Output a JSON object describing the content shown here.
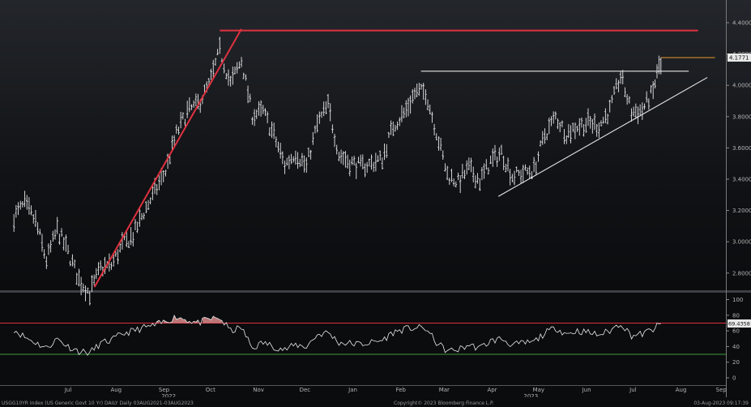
{
  "chart_data": [
    {
      "type": "ohlc-bar",
      "title": "",
      "ylabel": "",
      "ylim": [
        2.7,
        4.45
      ],
      "yticks": [
        "4.4000",
        "4.2000",
        "4.0000",
        "3.8000",
        "3.6000",
        "3.4000",
        "3.2000",
        "3.0000",
        "2.8000"
      ],
      "ytick_values": [
        4.4,
        4.2,
        4.0,
        3.8,
        3.6,
        3.4,
        3.2,
        3.0,
        2.8
      ],
      "last_value_label": "4.1771",
      "last_value": 4.1771,
      "x_months": [
        "Jul",
        "Aug",
        "Sep",
        "Oct",
        "Nov",
        "Dec",
        "Jan",
        "Feb",
        "Mar",
        "Apr",
        "May",
        "Jun",
        "Jul",
        "Aug",
        "Sep"
      ],
      "x_years": [
        "2022",
        "2023"
      ],
      "series_color": "#ffffff",
      "closes_weekly": [
        {
          "date": "2022-06-10",
          "y": 3.16
        },
        {
          "date": "2022-06-17",
          "y": 3.24
        },
        {
          "date": "2022-06-24",
          "y": 3.13
        },
        {
          "date": "2022-07-01",
          "y": 2.88
        },
        {
          "date": "2022-07-08",
          "y": 3.08
        },
        {
          "date": "2022-07-15",
          "y": 2.93
        },
        {
          "date": "2022-07-22",
          "y": 2.76
        },
        {
          "date": "2022-07-29",
          "y": 2.67
        },
        {
          "date": "2022-08-05",
          "y": 2.83
        },
        {
          "date": "2022-08-12",
          "y": 2.85
        },
        {
          "date": "2022-08-19",
          "y": 2.98
        },
        {
          "date": "2022-08-26",
          "y": 3.04
        },
        {
          "date": "2022-09-02",
          "y": 3.19
        },
        {
          "date": "2022-09-09",
          "y": 3.32
        },
        {
          "date": "2022-09-16",
          "y": 3.45
        },
        {
          "date": "2022-09-23",
          "y": 3.69
        },
        {
          "date": "2022-09-30",
          "y": 3.83
        },
        {
          "date": "2022-10-07",
          "y": 3.88
        },
        {
          "date": "2022-10-14",
          "y": 4.0
        },
        {
          "date": "2022-10-21",
          "y": 4.22
        },
        {
          "date": "2022-10-28",
          "y": 4.01
        },
        {
          "date": "2022-11-04",
          "y": 4.16
        },
        {
          "date": "2022-11-11",
          "y": 3.81
        },
        {
          "date": "2022-11-18",
          "y": 3.83
        },
        {
          "date": "2022-11-25",
          "y": 3.68
        },
        {
          "date": "2022-12-02",
          "y": 3.49
        },
        {
          "date": "2022-12-09",
          "y": 3.57
        },
        {
          "date": "2022-12-16",
          "y": 3.48
        },
        {
          "date": "2022-12-23",
          "y": 3.75
        },
        {
          "date": "2022-12-30",
          "y": 3.87
        },
        {
          "date": "2023-01-06",
          "y": 3.56
        },
        {
          "date": "2023-01-13",
          "y": 3.51
        },
        {
          "date": "2023-01-20",
          "y": 3.48
        },
        {
          "date": "2023-01-27",
          "y": 3.5
        },
        {
          "date": "2023-02-03",
          "y": 3.53
        },
        {
          "date": "2023-02-10",
          "y": 3.74
        },
        {
          "date": "2023-02-17",
          "y": 3.82
        },
        {
          "date": "2023-02-24",
          "y": 3.95
        },
        {
          "date": "2023-03-03",
          "y": 3.96
        },
        {
          "date": "2023-03-10",
          "y": 3.7
        },
        {
          "date": "2023-03-17",
          "y": 3.43
        },
        {
          "date": "2023-03-24",
          "y": 3.38
        },
        {
          "date": "2023-03-31",
          "y": 3.47
        },
        {
          "date": "2023-04-07",
          "y": 3.39
        },
        {
          "date": "2023-04-14",
          "y": 3.51
        },
        {
          "date": "2023-04-21",
          "y": 3.57
        },
        {
          "date": "2023-04-28",
          "y": 3.42
        },
        {
          "date": "2023-05-05",
          "y": 3.44
        },
        {
          "date": "2023-05-12",
          "y": 3.46
        },
        {
          "date": "2023-05-19",
          "y": 3.68
        },
        {
          "date": "2023-05-26",
          "y": 3.8
        },
        {
          "date": "2023-06-02",
          "y": 3.69
        },
        {
          "date": "2023-06-09",
          "y": 3.74
        },
        {
          "date": "2023-06-16",
          "y": 3.76
        },
        {
          "date": "2023-06-23",
          "y": 3.74
        },
        {
          "date": "2023-06-30",
          "y": 3.84
        },
        {
          "date": "2023-07-07",
          "y": 4.06
        },
        {
          "date": "2023-07-14",
          "y": 3.83
        },
        {
          "date": "2023-07-21",
          "y": 3.84
        },
        {
          "date": "2023-07-28",
          "y": 3.96
        },
        {
          "date": "2023-08-02",
          "y": 4.18
        }
      ],
      "annotations": [
        {
          "kind": "trendline",
          "color": "#e0313f",
          "from": {
            "date": "2022-08-01",
            "y": 2.71
          },
          "to": {
            "date": "2022-11-04",
            "y": 4.36
          }
        },
        {
          "kind": "resistance",
          "color": "#e0313f",
          "from": {
            "date": "2022-10-21",
            "y": 4.35
          },
          "to": {
            "date": "2023-08-26",
            "y": 4.35
          }
        },
        {
          "kind": "resistance",
          "color": "#e6e6e6",
          "from": {
            "date": "2023-02-28",
            "y": 4.09
          },
          "to": {
            "date": "2023-08-20",
            "y": 4.09
          }
        },
        {
          "kind": "support",
          "color": "#e6e6e6",
          "from": {
            "date": "2023-04-19",
            "y": 3.29
          },
          "to": {
            "date": "2023-09-01",
            "y": 4.05
          }
        },
        {
          "kind": "last-price",
          "color": "#d88a2e",
          "from": {
            "date": "2023-08-02",
            "y": 4.1771
          },
          "to": {
            "date": "2023-09-06",
            "y": 4.1771
          }
        }
      ]
    },
    {
      "type": "line",
      "title": "",
      "ylabel": "",
      "ylim": [
        -8,
        110
      ],
      "yticks": [
        "100",
        "80",
        "60",
        "40",
        "20",
        "0"
      ],
      "ytick_values": [
        100,
        80,
        60,
        40,
        20,
        0
      ],
      "last_value_label": "69.4358",
      "last_value": 69.4358,
      "overbought": 70,
      "oversold": 30,
      "overbought_color": "#e0313f",
      "oversold_color": "#3f9d3f",
      "fill_color": "#d98a8a",
      "points": [
        {
          "date": "2022-06-10",
          "y": 62
        },
        {
          "date": "2022-06-17",
          "y": 52
        },
        {
          "date": "2022-06-24",
          "y": 45
        },
        {
          "date": "2022-07-01",
          "y": 38
        },
        {
          "date": "2022-07-08",
          "y": 50
        },
        {
          "date": "2022-07-15",
          "y": 40
        },
        {
          "date": "2022-07-22",
          "y": 34
        },
        {
          "date": "2022-07-29",
          "y": 32
        },
        {
          "date": "2022-08-05",
          "y": 44
        },
        {
          "date": "2022-08-12",
          "y": 48
        },
        {
          "date": "2022-08-19",
          "y": 56
        },
        {
          "date": "2022-08-26",
          "y": 60
        },
        {
          "date": "2022-09-02",
          "y": 64
        },
        {
          "date": "2022-09-09",
          "y": 67
        },
        {
          "date": "2022-09-16",
          "y": 72
        },
        {
          "date": "2022-09-23",
          "y": 78
        },
        {
          "date": "2022-09-30",
          "y": 74
        },
        {
          "date": "2022-10-07",
          "y": 70
        },
        {
          "date": "2022-10-14",
          "y": 75
        },
        {
          "date": "2022-10-21",
          "y": 76
        },
        {
          "date": "2022-10-28",
          "y": 60
        },
        {
          "date": "2022-11-04",
          "y": 64
        },
        {
          "date": "2022-11-11",
          "y": 38
        },
        {
          "date": "2022-11-18",
          "y": 45
        },
        {
          "date": "2022-11-25",
          "y": 40
        },
        {
          "date": "2022-12-02",
          "y": 36
        },
        {
          "date": "2022-12-09",
          "y": 42
        },
        {
          "date": "2022-12-16",
          "y": 40
        },
        {
          "date": "2022-12-23",
          "y": 55
        },
        {
          "date": "2022-12-30",
          "y": 58
        },
        {
          "date": "2023-01-06",
          "y": 45
        },
        {
          "date": "2023-01-13",
          "y": 44
        },
        {
          "date": "2023-01-20",
          "y": 43
        },
        {
          "date": "2023-01-27",
          "y": 45
        },
        {
          "date": "2023-02-03",
          "y": 48
        },
        {
          "date": "2023-02-10",
          "y": 58
        },
        {
          "date": "2023-02-17",
          "y": 62
        },
        {
          "date": "2023-02-24",
          "y": 64
        },
        {
          "date": "2023-03-03",
          "y": 63
        },
        {
          "date": "2023-03-10",
          "y": 45
        },
        {
          "date": "2023-03-17",
          "y": 34
        },
        {
          "date": "2023-03-24",
          "y": 36
        },
        {
          "date": "2023-03-31",
          "y": 42
        },
        {
          "date": "2023-04-07",
          "y": 38
        },
        {
          "date": "2023-04-14",
          "y": 47
        },
        {
          "date": "2023-04-21",
          "y": 50
        },
        {
          "date": "2023-04-28",
          "y": 42
        },
        {
          "date": "2023-05-05",
          "y": 44
        },
        {
          "date": "2023-05-12",
          "y": 46
        },
        {
          "date": "2023-05-19",
          "y": 57
        },
        {
          "date": "2023-05-26",
          "y": 64
        },
        {
          "date": "2023-06-02",
          "y": 56
        },
        {
          "date": "2023-06-09",
          "y": 60
        },
        {
          "date": "2023-06-16",
          "y": 58
        },
        {
          "date": "2023-06-23",
          "y": 55
        },
        {
          "date": "2023-06-30",
          "y": 60
        },
        {
          "date": "2023-07-07",
          "y": 70
        },
        {
          "date": "2023-07-14",
          "y": 54
        },
        {
          "date": "2023-07-21",
          "y": 56
        },
        {
          "date": "2023-07-28",
          "y": 62
        },
        {
          "date": "2023-08-02",
          "y": 69.4
        }
      ]
    }
  ],
  "footer": {
    "security": "USGG10YR Index (US Generic Govt 10 Yr) DAILY  Daily 03AUG2021-03AUG2023",
    "copyright": "Copyright© 2023 Bloomberg Finance L.P.",
    "timestamp": "03-Aug-2023 09:17:39"
  }
}
